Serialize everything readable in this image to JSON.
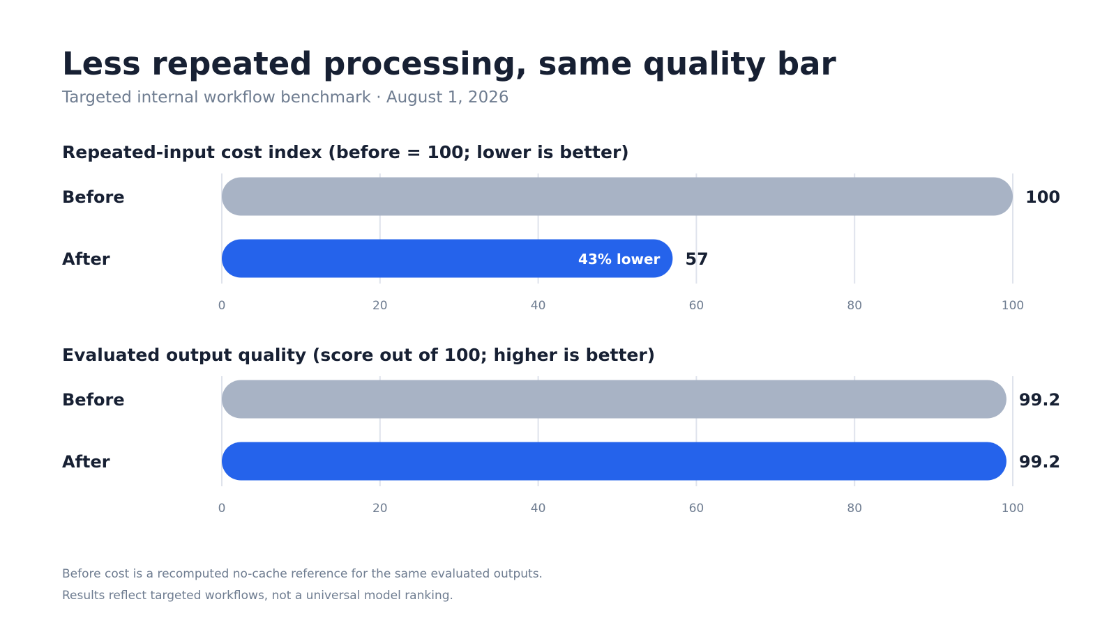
{
  "header": {
    "title": "Less repeated processing, same quality bar",
    "subtitle": "Targeted internal workflow benchmark · August 1, 2026"
  },
  "colors": {
    "before": "#a8b3c5",
    "after": "#2563eb",
    "text": "#172033",
    "muted": "#6e7c90",
    "grid": "#dfe3ec"
  },
  "chart_data": [
    {
      "type": "bar",
      "orientation": "horizontal",
      "title": "Repeated-input cost index  (before = 100; lower is better)",
      "categories": [
        "Before",
        "After"
      ],
      "values": [
        100,
        57
      ],
      "value_labels": [
        "100",
        "57"
      ],
      "xlim": [
        0,
        100
      ],
      "xticks": [
        "0",
        "20",
        "40",
        "60",
        "80",
        "100"
      ],
      "grid": true,
      "annotations": [
        {
          "category": "After",
          "text": "43% lower"
        }
      ]
    },
    {
      "type": "bar",
      "orientation": "horizontal",
      "title": "Evaluated output quality  (score out of 100; higher is better)",
      "categories": [
        "Before",
        "After"
      ],
      "values": [
        99.2,
        99.2
      ],
      "value_labels": [
        "99.2",
        "99.2"
      ],
      "xlim": [
        0,
        100
      ],
      "xticks": [
        "0",
        "20",
        "40",
        "60",
        "80",
        "100"
      ],
      "grid": true,
      "annotations": []
    }
  ],
  "footnotes": [
    "Before cost is a recomputed no-cache reference for the same evaluated outputs.",
    "Results reflect targeted workflows, not a universal model ranking."
  ]
}
